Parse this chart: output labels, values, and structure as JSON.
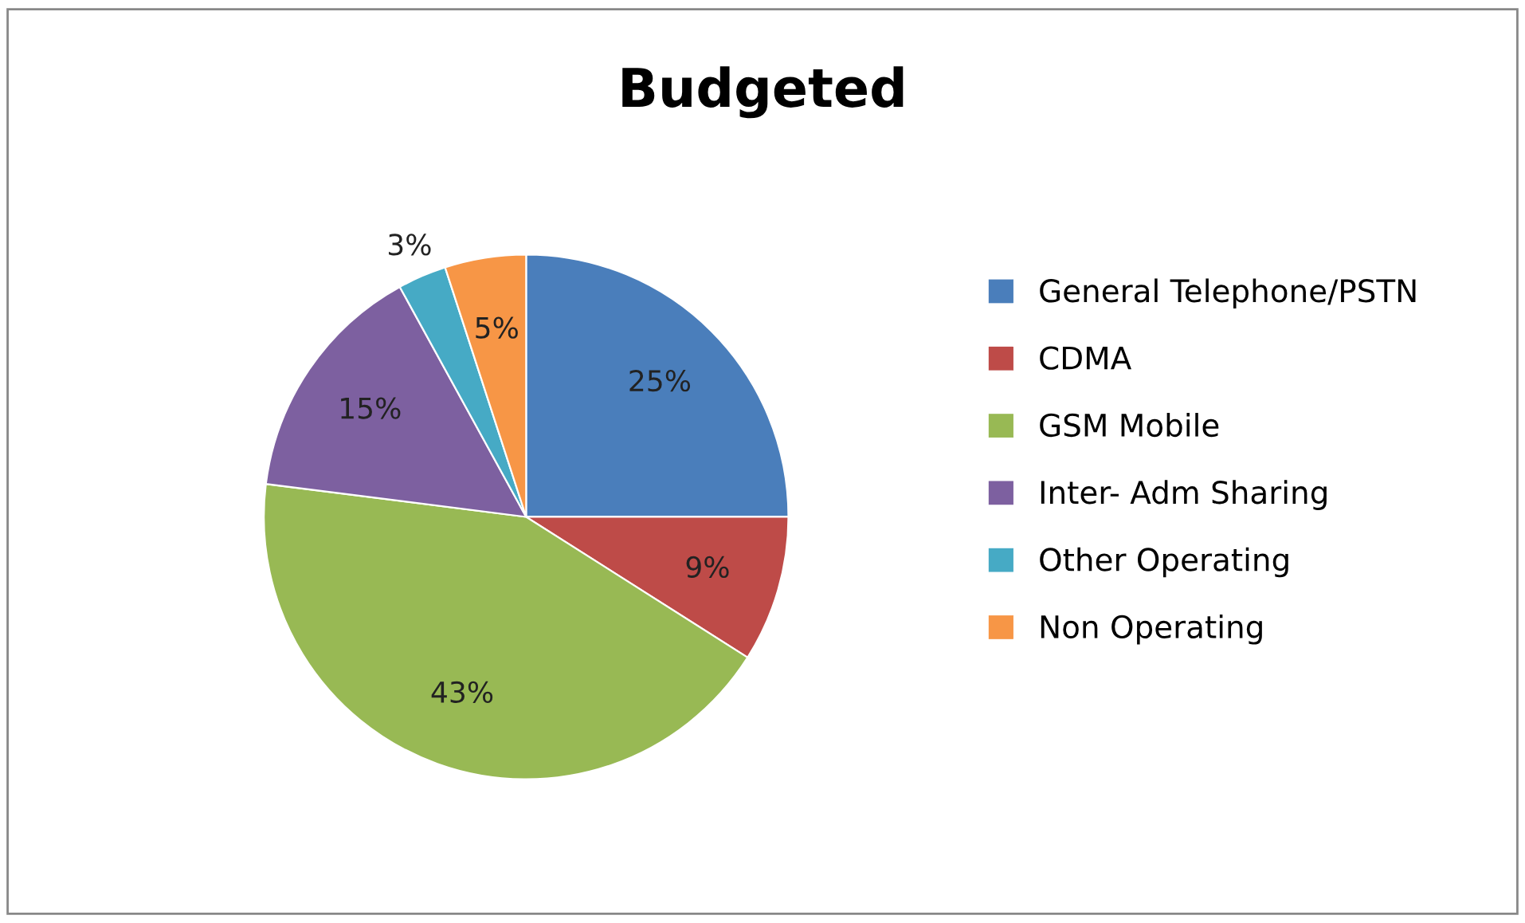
{
  "chart_data": {
    "type": "pie",
    "title": "Budgeted",
    "categories": [
      "General Telephone/PSTN",
      "CDMA",
      "GSM Mobile",
      "Inter- Adm Sharing",
      "Other Operating",
      "Non Operating"
    ],
    "values": [
      25,
      9,
      43,
      15,
      3,
      5
    ],
    "value_labels": [
      "25%",
      "9%",
      "43%",
      "15%",
      "3%",
      "5%"
    ],
    "colors": [
      "#4a7ebb",
      "#be4b48",
      "#98b954",
      "#7d60a0",
      "#46aac5",
      "#f79646"
    ],
    "legend": "right"
  }
}
